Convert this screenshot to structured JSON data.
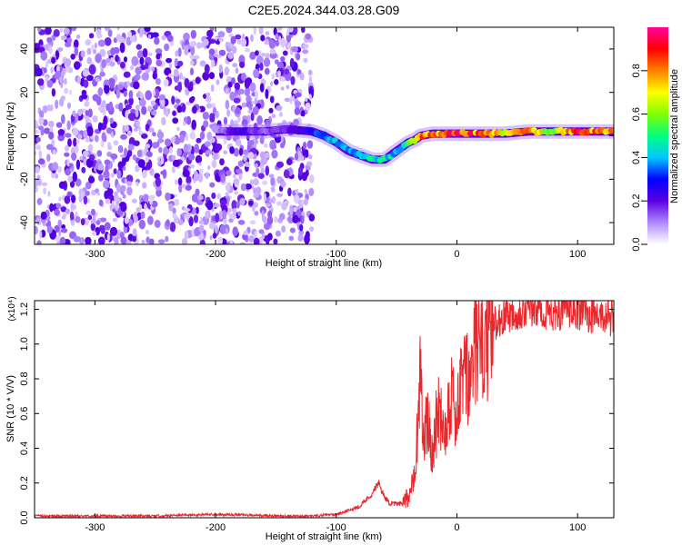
{
  "figure": {
    "title": "C2E5.2024.344.03.28.G09"
  },
  "chart_data": [
    {
      "type": "heatmap",
      "title": "C2E5.2024.344.03.28.G09",
      "xlabel": "Height of straight line (km)",
      "ylabel": "Frequency (Hz)",
      "xlim": [
        -350,
        130
      ],
      "ylim": [
        -50,
        50
      ],
      "x_ticks": [
        -300,
        -200,
        -100,
        0,
        100
      ],
      "y_ticks": [
        -40,
        -20,
        0,
        20,
        40
      ],
      "colorbar": {
        "label": "Normalized spectral amplitude",
        "range": [
          0,
          1
        ],
        "ticks": [
          "0.0",
          "0.2",
          "0.4",
          "0.6",
          "0.8"
        ],
        "colors": [
          "#ffffff",
          "#b08aff",
          "#5a00e0",
          "#0000ff",
          "#00c8ff",
          "#00ff80",
          "#80ff00",
          "#ffff00",
          "#ff8000",
          "#ff0000",
          "#ff00a0"
        ]
      },
      "noise_region_x": [
        -350,
        -120
      ],
      "ridge": {
        "x": [
          -200,
          -180,
          -160,
          -140,
          -120,
          -110,
          -100,
          -90,
          -80,
          -70,
          -60,
          -50,
          -45,
          -40,
          -35,
          -30,
          -20,
          -10,
          0,
          20,
          40,
          60,
          80,
          100,
          120,
          130
        ],
        "y": [
          2,
          2,
          2,
          3,
          2,
          0,
          -3,
          -7,
          -9,
          -11,
          -11,
          -7,
          -5,
          -3,
          -2,
          0,
          1,
          1,
          1,
          1,
          1,
          2,
          2,
          2,
          2,
          2
        ],
        "amplitude": [
          0.1,
          0.25,
          0.15,
          0.2,
          0.3,
          0.4,
          0.45,
          0.4,
          0.45,
          0.5,
          0.5,
          0.45,
          0.5,
          0.6,
          0.75,
          0.85,
          0.95,
          0.9,
          0.95,
          0.9,
          0.75,
          0.85,
          0.7,
          0.95,
          0.85,
          0.8
        ]
      }
    },
    {
      "type": "line",
      "xlabel": "Height of straight line (km)",
      "ylabel": "SNR (10 * V/V)",
      "y_multiplier": "(x10⁴)",
      "xlim": [
        -350,
        130
      ],
      "ylim": [
        0,
        1.25
      ],
      "x_ticks": [
        -300,
        -200,
        -100,
        0,
        100
      ],
      "y_ticks": [
        "0.0",
        "0.2",
        "0.4",
        "0.6",
        "0.8",
        "1.0",
        "1.2"
      ],
      "color": "#e8282c",
      "series": [
        {
          "x": [
            -350,
            -300,
            -250,
            -200,
            -150,
            -120,
            -100,
            -90,
            -80,
            -70,
            -65,
            -60,
            -55,
            -50,
            -45,
            -40,
            -35,
            -32,
            -30,
            -28,
            -25,
            -20,
            -15,
            -10,
            -5,
            0,
            5,
            10,
            15,
            20,
            25,
            30,
            40,
            50,
            60,
            70,
            80,
            90,
            100,
            110,
            120,
            130
          ],
          "y": [
            0.01,
            0.01,
            0.01,
            0.02,
            0.01,
            0.01,
            0.02,
            0.04,
            0.07,
            0.14,
            0.2,
            0.12,
            0.08,
            0.08,
            0.08,
            0.12,
            0.3,
            0.55,
            1.0,
            0.4,
            0.55,
            0.4,
            0.65,
            0.5,
            0.75,
            0.55,
            0.85,
            0.75,
            1.0,
            0.95,
            1.05,
            1.12,
            1.17,
            1.19,
            1.2,
            1.19,
            1.18,
            1.2,
            1.19,
            1.17,
            1.16,
            1.15
          ]
        }
      ]
    }
  ]
}
